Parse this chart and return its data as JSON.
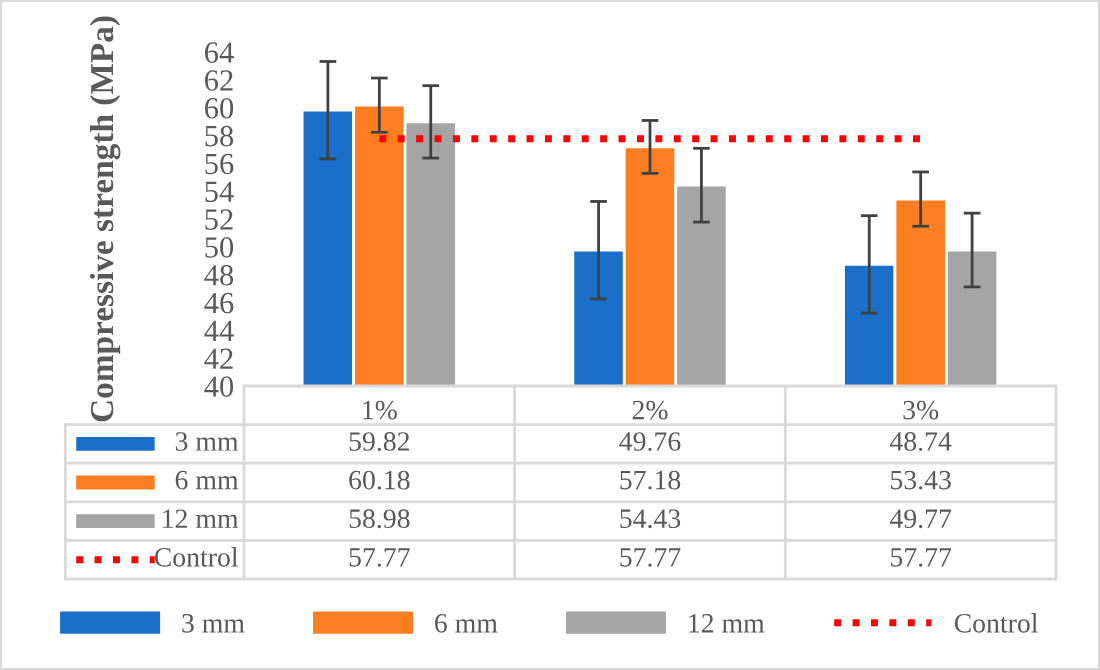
{
  "chart_data": {
    "type": "bar",
    "ylabel": "Compressive strength (MPa)",
    "categories": [
      "1%",
      "2%",
      "3%"
    ],
    "series": [
      {
        "name": "3 mm",
        "color": "#1a70c8",
        "values": [
          59.82,
          49.76,
          48.74
        ],
        "errors": [
          3.5,
          3.5,
          3.5
        ]
      },
      {
        "name": "6 mm",
        "color": "#fd7e21",
        "values": [
          60.18,
          57.18,
          53.43
        ],
        "errors": [
          1.95,
          1.9,
          1.95
        ]
      },
      {
        "name": "12 mm",
        "color": "#a5a5a5",
        "values": [
          58.98,
          54.43,
          49.77
        ],
        "errors": [
          2.6,
          2.65,
          2.65
        ]
      },
      {
        "name": "Control",
        "type": "line",
        "color": "#ff0000",
        "line_style": "dotted",
        "marker": "none",
        "values": [
          57.77,
          57.77,
          57.77
        ]
      }
    ],
    "ylim": [
      40,
      64
    ],
    "yticks": [
      40,
      42,
      44,
      46,
      48,
      50,
      52,
      54,
      56,
      58,
      60,
      62,
      64
    ],
    "data_labels": true,
    "legend": "bottom",
    "grid": false
  }
}
